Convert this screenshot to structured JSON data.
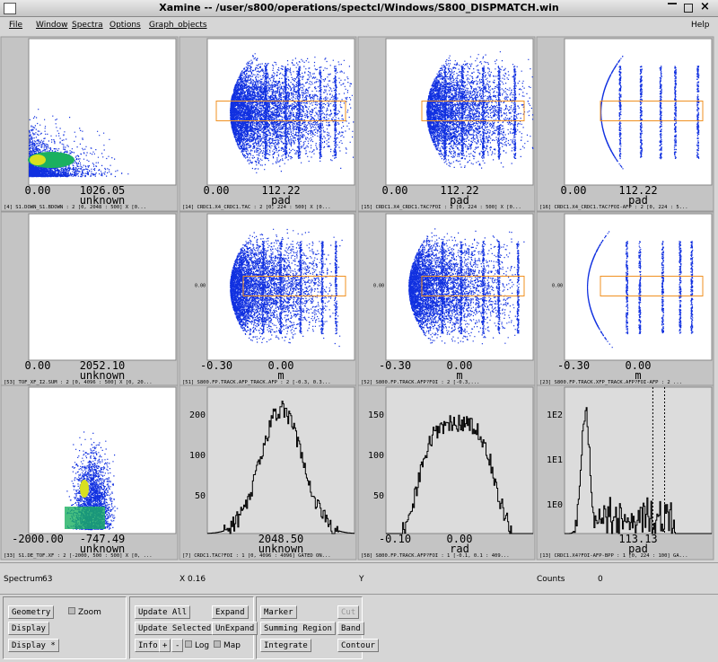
{
  "window": {
    "title": "Xamine -- /user/s800/operations/spectcl/Windows/S800_DISPMATCH.win"
  },
  "menu": {
    "items": [
      "File",
      "Window",
      "Spectra",
      "Options",
      "Graph_objects"
    ],
    "help": "Help"
  },
  "panes": [
    {
      "x_ticks": [
        "0.00",
        "1026.05"
      ],
      "x_title": "unknown",
      "caption": "[4] S1.DOWN_S1.BDOWN : 2 [0, 2048 : 500] X [0..."
    },
    {
      "x_ticks": [
        "0.00",
        "112.22"
      ],
      "x_title": "pad",
      "caption": "[14] CRDC1.X4_CRDC1.TAC : 2 [0, 224 : 500] X [0..."
    },
    {
      "x_ticks": [
        "0.00",
        "112.22"
      ],
      "x_title": "pad",
      "caption": "[15] CRDC1.X4_CRDC1.TAC?FOI : 2 [0, 224 : 500] X [0..."
    },
    {
      "x_ticks": [
        "0.00",
        "112.22"
      ],
      "x_title": "pad",
      "caption": "[16] CRDC1.X4_CRDC1.TAC?FOI-AFP : 2 [0, 224 : 5..."
    },
    {
      "x_ticks": [
        "0.00",
        "2052.10"
      ],
      "x_title": "unknown",
      "caption": "[53] TOF_XF_I2.SUM : 2 [0, 4096 : 500] X [0, 20..."
    },
    {
      "x_ticks": [
        "-0.30",
        "0.00"
      ],
      "x_title": "m",
      "y_ticks": [
        "0.00"
      ],
      "caption": "[51] S800.FP.TRACK.AFP_TRACK.AFP : 2 [-0.3, 0.3..."
    },
    {
      "x_ticks": [
        "-0.30",
        "0.00"
      ],
      "x_title": "m",
      "y_ticks": [
        "0.00"
      ],
      "caption": "[52] S800.FP.TRACK.AFP?FOI : 2 [-0.3,..."
    },
    {
      "x_ticks": [
        "-0.30",
        "0.00"
      ],
      "x_title": "m",
      "y_ticks": [
        "0.00"
      ],
      "caption": "[23] S800.FP.TRACK.XFP_TRACK.AFP?FOI-AFP : 2 ..."
    },
    {
      "x_ticks": [
        "-2000.00",
        "-747.49"
      ],
      "x_title": "unknown",
      "caption": "[33] S1.DE_TOF.XF : 2 [-2000, 500 : 500] X [0, ..."
    },
    {
      "x_ticks": [
        "2048.50"
      ],
      "x_title": "unknown",
      "y_ticks": [
        "200",
        "100",
        "50"
      ],
      "caption": "[7] CRDC1.TAC?FOI : 1 [0, 4096 : 4096] GATED ON..."
    },
    {
      "x_ticks": [
        "-0.10",
        "0.00"
      ],
      "x_title": "rad",
      "y_ticks": [
        "150",
        "100",
        "50"
      ],
      "caption": "[58] S800.FP.TRACK.AFP?FOI : 1 [-0.1, 0.1 : 409..."
    },
    {
      "x_ticks": [
        "113.13"
      ],
      "x_title": "pad",
      "y_ticks": [
        "1E2",
        "1E1",
        "1E0"
      ],
      "caption": "[13] CRDC1.X4?FOI-AFP-BPP : 1 [0, 224 : 100] GA..."
    }
  ],
  "status": {
    "spectrum_label": "Spectrum",
    "spectrum": "63",
    "x": "X 0.16",
    "y": "Y",
    "counts_label": "Counts",
    "counts": "0"
  },
  "controls": {
    "geometry": "Geometry",
    "zoom": "Zoom",
    "display": "Display",
    "display_star": "Display *",
    "update_all": "Update All",
    "expand": "Expand",
    "update_selected": "Update Selected",
    "unexpand": "UnExpand",
    "info": "Info",
    "plus": "+",
    "minus": "-",
    "log": "Log",
    "map": "Map",
    "marker": "Marker",
    "cut": "Cut",
    "summing_region": "Summing Region",
    "band": "Band",
    "integrate": "Integrate",
    "contour": "Contour"
  }
}
